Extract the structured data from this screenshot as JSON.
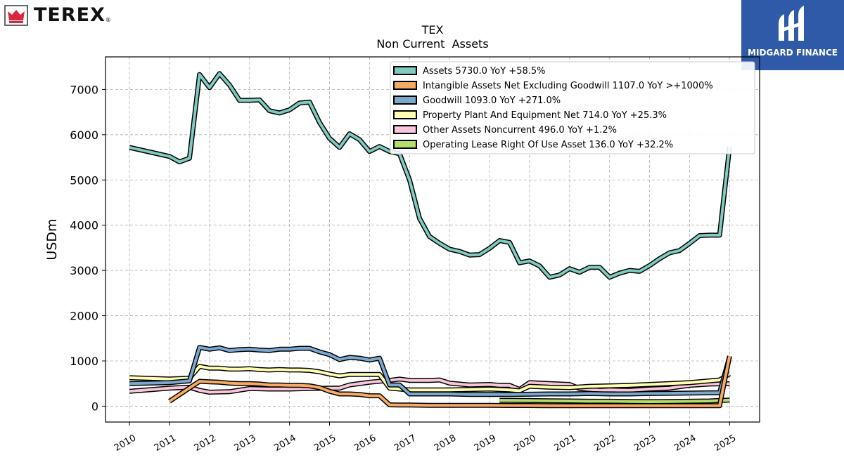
{
  "branding": {
    "company_name": "TEREX",
    "registered_mark": "®",
    "publisher": "MIDGARD FINANCE",
    "brand_red": "#d7263d",
    "publisher_blue": "#2f5aa8"
  },
  "chart_data": {
    "type": "line",
    "title": "TEX",
    "subtitle": "Non Current  Assets",
    "xlabel": "",
    "ylabel": "USDm",
    "xlim": [
      2009.4,
      2025.75
    ],
    "ylim": [
      -350,
      7720
    ],
    "x_ticks": [
      2010,
      2011,
      2012,
      2013,
      2014,
      2015,
      2016,
      2017,
      2018,
      2019,
      2020,
      2021,
      2022,
      2023,
      2024,
      2025
    ],
    "x_tick_labels": [
      "2010",
      "2011",
      "2012",
      "2013",
      "2014",
      "2015",
      "2016",
      "2017",
      "2018",
      "2019",
      "2020",
      "2021",
      "2022",
      "2023",
      "2024",
      "2025"
    ],
    "y_ticks": [
      0,
      1000,
      2000,
      3000,
      4000,
      5000,
      6000,
      7000
    ],
    "y_tick_labels": [
      "0",
      "1000",
      "2000",
      "3000",
      "4000",
      "5000",
      "6000",
      "7000"
    ],
    "grid": true,
    "legend_position": "top-right",
    "series": [
      {
        "name": "Assets  5730.0 YoY +58.5%",
        "color": "#80cbbf",
        "x": [
          2010.0,
          2011.0,
          2011.25,
          2011.5,
          2011.75,
          2012.0,
          2012.25,
          2012.5,
          2012.75,
          2013.0,
          2013.25,
          2013.5,
          2013.75,
          2014.0,
          2014.25,
          2014.5,
          2014.75,
          2015.0,
          2015.25,
          2015.5,
          2015.75,
          2016.0,
          2016.25,
          2016.5,
          2016.75,
          2017.0,
          2017.25,
          2017.5,
          2017.75,
          2018.0,
          2018.25,
          2018.5,
          2018.75,
          2019.0,
          2019.25,
          2019.5,
          2019.75,
          2020.0,
          2020.25,
          2020.5,
          2020.75,
          2021.0,
          2021.25,
          2021.5,
          2021.75,
          2022.0,
          2022.25,
          2022.5,
          2022.75,
          2023.0,
          2023.25,
          2023.5,
          2023.75,
          2024.0,
          2024.25,
          2024.5,
          2024.75,
          2025.0
        ],
        "values": [
          5720,
          5520,
          5400,
          5480,
          7330,
          7040,
          7350,
          7100,
          6760,
          6760,
          6770,
          6530,
          6480,
          6550,
          6700,
          6720,
          6270,
          5920,
          5720,
          6020,
          5890,
          5630,
          5740,
          5630,
          5580,
          5000,
          4150,
          3750,
          3600,
          3470,
          3420,
          3340,
          3350,
          3490,
          3660,
          3620,
          3170,
          3210,
          3100,
          2850,
          2900,
          3040,
          2960,
          3070,
          3070,
          2850,
          2940,
          3000,
          2980,
          3110,
          3260,
          3390,
          3440,
          3600,
          3770,
          3780,
          3780,
          5730
        ]
      },
      {
        "name": "Intangible Assets Net Excluding Goodwill  1107.0 YoY >+1000%",
        "color": "#f6aa63",
        "x": [
          2011.0,
          2011.75,
          2012.0,
          2012.25,
          2012.5,
          2012.75,
          2013.0,
          2013.25,
          2013.5,
          2013.75,
          2014.0,
          2014.25,
          2014.5,
          2014.75,
          2015.0,
          2015.25,
          2015.5,
          2015.75,
          2016.0,
          2016.25,
          2016.5,
          2016.75,
          2017.0,
          2017.5,
          2018.0,
          2018.5,
          2019.0,
          2019.5,
          2020.0,
          2020.5,
          2021.0,
          2021.5,
          2022.0,
          2022.5,
          2023.0,
          2023.5,
          2024.0,
          2024.5,
          2024.75,
          2025.0
        ],
        "values": [
          110,
          550,
          540,
          530,
          510,
          500,
          500,
          490,
          470,
          470,
          460,
          460,
          450,
          410,
          330,
          270,
          270,
          260,
          230,
          230,
          30,
          25,
          25,
          20,
          20,
          18,
          18,
          15,
          15,
          12,
          12,
          10,
          10,
          10,
          10,
          10,
          10,
          10,
          10,
          1107
        ]
      },
      {
        "name": "Goodwill  1093.0 YoY +271.0%",
        "color": "#7ba8cf",
        "x": [
          2010.0,
          2011.0,
          2011.5,
          2011.75,
          2012.0,
          2012.25,
          2012.5,
          2012.75,
          2013.0,
          2013.25,
          2013.5,
          2013.75,
          2014.0,
          2014.25,
          2014.5,
          2014.75,
          2015.0,
          2015.25,
          2015.5,
          2015.75,
          2016.0,
          2016.25,
          2016.5,
          2016.75,
          2017.0,
          2017.5,
          2018.0,
          2018.5,
          2019.0,
          2019.5,
          2020.0,
          2020.5,
          2021.0,
          2021.5,
          2022.0,
          2022.5,
          2023.0,
          2023.5,
          2024.0,
          2024.5,
          2024.75,
          2025.0
        ],
        "values": [
          500,
          520,
          560,
          1300,
          1260,
          1290,
          1230,
          1250,
          1260,
          1240,
          1230,
          1260,
          1260,
          1280,
          1280,
          1200,
          1140,
          1030,
          1080,
          1060,
          1020,
          1060,
          470,
          470,
          270,
          270,
          270,
          260,
          260,
          260,
          265,
          270,
          270,
          280,
          270,
          270,
          280,
          285,
          290,
          295,
          295,
          1093
        ]
      },
      {
        "name": "Property Plant And Equipment Net  714.0 YoY +25.3%",
        "color": "#ffffb3",
        "x": [
          2010.0,
          2011.0,
          2011.5,
          2011.75,
          2012.0,
          2012.25,
          2012.5,
          2012.75,
          2013.0,
          2013.25,
          2013.5,
          2013.75,
          2014.0,
          2014.25,
          2014.5,
          2014.75,
          2015.0,
          2015.25,
          2015.5,
          2015.75,
          2016.0,
          2016.25,
          2016.5,
          2016.75,
          2017.0,
          2017.5,
          2018.0,
          2018.5,
          2019.0,
          2019.5,
          2019.75,
          2020.0,
          2020.5,
          2021.0,
          2021.5,
          2022.0,
          2022.5,
          2023.0,
          2023.5,
          2024.0,
          2024.5,
          2024.75,
          2025.0
        ],
        "values": [
          630,
          600,
          620,
          880,
          840,
          840,
          820,
          820,
          830,
          810,
          800,
          810,
          800,
          800,
          790,
          760,
          710,
          670,
          700,
          700,
          700,
          700,
          400,
          380,
          360,
          360,
          360,
          370,
          380,
          360,
          340,
          440,
          420,
          410,
          440,
          450,
          460,
          480,
          500,
          520,
          560,
          580,
          714
        ]
      },
      {
        "name": "Other Assets Noncurrent  496.0 YoY +1.2%",
        "color": "#f9c7dc",
        "x": [
          2010.0,
          2011.0,
          2011.5,
          2011.75,
          2012.0,
          2012.5,
          2013.0,
          2013.5,
          2014.0,
          2014.5,
          2015.0,
          2015.25,
          2015.5,
          2016.0,
          2016.5,
          2016.75,
          2017.0,
          2017.5,
          2017.75,
          2018.0,
          2018.5,
          2019.0,
          2019.25,
          2019.5,
          2019.75,
          2020.0,
          2020.5,
          2021.0,
          2021.25,
          2021.75,
          2022.0,
          2022.5,
          2023.0,
          2023.5,
          2024.0,
          2024.5,
          2025.0
        ],
        "values": [
          330,
          400,
          420,
          350,
          310,
          320,
          390,
          380,
          380,
          390,
          400,
          400,
          470,
          530,
          570,
          600,
          570,
          570,
          580,
          510,
          470,
          480,
          460,
          460,
          370,
          520,
          500,
          480,
          390,
          350,
          360,
          350,
          380,
          400,
          460,
          490,
          496
        ]
      },
      {
        "name": "Operating Lease Right Of Use Asset  136.0 YoY +32.2%",
        "color": "#b3de69",
        "x": [
          2019.25,
          2019.5,
          2020.0,
          2020.5,
          2021.0,
          2021.5,
          2022.0,
          2022.5,
          2023.0,
          2023.5,
          2024.0,
          2024.5,
          2025.0
        ],
        "values": [
          130,
          130,
          125,
          120,
          115,
          110,
          110,
          105,
          100,
          105,
          110,
          115,
          136
        ]
      }
    ]
  }
}
